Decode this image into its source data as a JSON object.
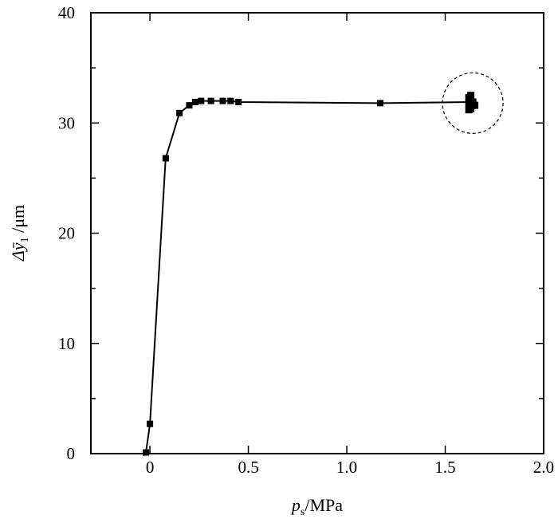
{
  "chart_data": {
    "type": "line",
    "xlabel": {
      "main": "p",
      "sub": "s",
      "unit": "/MPa"
    },
    "ylabel": {
      "main": "Δȳ",
      "sub": "1",
      "unit": " /μm"
    },
    "xlim": [
      -0.3,
      2.0
    ],
    "ylim": [
      0,
      40
    ],
    "x_ticks": [
      0,
      0.5,
      1.0,
      1.5,
      2.0
    ],
    "x_tick_labels": [
      "0",
      "0.5",
      "1.0",
      "1.5",
      "2.0"
    ],
    "y_ticks": [
      0,
      10,
      20,
      30,
      40
    ],
    "y_tick_labels": [
      "0",
      "10",
      "20",
      "30",
      "40"
    ],
    "y_minor_ticks": [
      5,
      15,
      25,
      35
    ],
    "grid": false,
    "marker": "square",
    "line_color": "#000000",
    "series": [
      {
        "x": [
          -0.02,
          0.0,
          0.08,
          0.15,
          0.2,
          0.23,
          0.26,
          0.31,
          0.37,
          0.41,
          0.45,
          1.17,
          1.63
        ],
        "y": [
          0.1,
          2.7,
          26.8,
          30.9,
          31.6,
          31.9,
          32.0,
          32.0,
          32.0,
          32.0,
          31.9,
          31.8,
          31.9
        ]
      }
    ],
    "cluster_points": {
      "x": [
        1.62,
        1.63,
        1.64,
        1.63,
        1.62,
        1.64,
        1.63,
        1.65,
        1.62,
        1.63
      ],
      "y": [
        31.2,
        31.5,
        31.7,
        32.0,
        32.3,
        31.9,
        32.5,
        31.6,
        31.8,
        31.3
      ]
    },
    "annotations": [
      {
        "type": "dashed-circle",
        "center_x": 1.64,
        "center_y": 31.8
      }
    ]
  }
}
